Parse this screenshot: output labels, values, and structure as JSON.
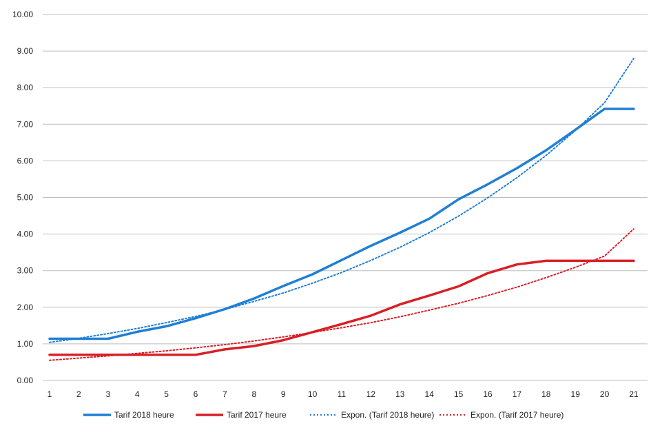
{
  "chart_data": {
    "type": "line",
    "title": "",
    "xlabel": "",
    "ylabel": "",
    "x": [
      1,
      2,
      3,
      4,
      5,
      6,
      7,
      8,
      9,
      10,
      11,
      12,
      13,
      14,
      15,
      16,
      17,
      18,
      19,
      20,
      21
    ],
    "x_tick_labels": [
      "1",
      "2",
      "3",
      "4",
      "5",
      "6",
      "7",
      "8",
      "9",
      "10",
      "11",
      "12",
      "13",
      "14",
      "15",
      "16",
      "17",
      "18",
      "19",
      "20",
      "21"
    ],
    "ylim": [
      0,
      10
    ],
    "y_ticks": [
      0,
      1,
      2,
      3,
      4,
      5,
      6,
      7,
      8,
      9,
      10
    ],
    "y_tick_labels": [
      "0.00",
      "1.00",
      "2.00",
      "3.00",
      "4.00",
      "5.00",
      "6.00",
      "7.00",
      "8.00",
      "9.00",
      "10.00"
    ],
    "grid": true,
    "legend_position": "bottom",
    "series": [
      {
        "name": "Tarif 2018 heure",
        "color": "#1f7fd4",
        "style": "solid",
        "values": [
          1.14,
          1.14,
          1.14,
          1.33,
          1.48,
          1.7,
          1.95,
          2.24,
          2.58,
          2.9,
          3.29,
          3.68,
          4.04,
          4.42,
          4.95,
          5.36,
          5.8,
          6.29,
          6.85,
          7.42,
          7.42
        ]
      },
      {
        "name": "Tarif 2017 heure",
        "color": "#d81f26",
        "style": "solid",
        "values": [
          0.7,
          0.7,
          0.7,
          0.7,
          0.7,
          0.7,
          0.85,
          0.94,
          1.1,
          1.32,
          1.54,
          1.77,
          2.08,
          2.32,
          2.57,
          2.93,
          3.17,
          3.27,
          3.27,
          3.27,
          3.27
        ]
      },
      {
        "name": "Expon. (Tarif 2018 heure)",
        "color": "#1f7fd4",
        "style": "dotted",
        "values": [
          1.04,
          1.15,
          1.28,
          1.42,
          1.58,
          1.75,
          1.94,
          2.16,
          2.39,
          2.66,
          2.95,
          3.28,
          3.64,
          4.04,
          4.49,
          4.99,
          5.54,
          6.15,
          6.83,
          7.59,
          8.8
        ]
      },
      {
        "name": "Expon. (Tarif 2017 heure)",
        "color": "#d81f26",
        "style": "dotted",
        "values": [
          0.55,
          0.61,
          0.67,
          0.74,
          0.81,
          0.89,
          0.98,
          1.08,
          1.19,
          1.31,
          1.44,
          1.58,
          1.74,
          1.92,
          2.11,
          2.32,
          2.55,
          2.81,
          3.09,
          3.4,
          4.14
        ]
      }
    ]
  }
}
